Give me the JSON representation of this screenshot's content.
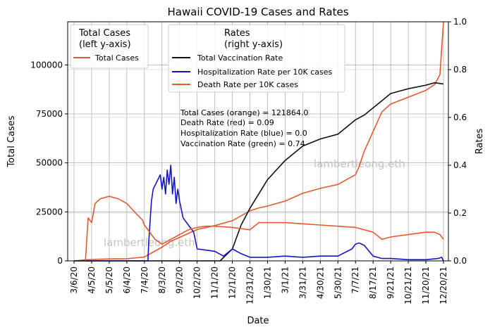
{
  "chart_data": {
    "type": "line",
    "title": "Hawaii COVID-19 Cases and Rates",
    "xlabel": "Date",
    "ylabel_left": "Total Cases",
    "ylabel_right": "Rates",
    "x_ticks": [
      "3/6/20",
      "4/5/20",
      "5/5/20",
      "6/4/20",
      "7/4/20",
      "8/3/20",
      "9/2/20",
      "10/2/20",
      "11/1/20",
      "12/1/20",
      "12/31/20",
      "1/30/21",
      "3/1/21",
      "3/31/21",
      "4/30/21",
      "5/30/21",
      "7/7/21",
      "8/17/21",
      "9/21/21",
      "10/21/21",
      "11/20/21",
      "12/20/21"
    ],
    "ylim_left": [
      0,
      122000
    ],
    "yticks_left": [
      0,
      25000,
      50000,
      75000,
      100000
    ],
    "ylim_right": [
      0,
      1.0
    ],
    "yticks_right": [
      0.0,
      0.2,
      0.4,
      0.6,
      0.8,
      1.0
    ],
    "grid": true,
    "legend_left": {
      "title_line1": "Total Cases",
      "title_line2": "(left y-axis)",
      "items": [
        {
          "label": "Total Cases",
          "color": "#e15a32"
        }
      ]
    },
    "legend_right": {
      "title_line1": "Rates",
      "title_line2": "(right y-axis)",
      "items": [
        {
          "label": "Total Vaccination Rate",
          "color": "#111111"
        },
        {
          "label": "Hospitalization Rate per 10K cases",
          "color": "#1515c8"
        },
        {
          "label": "Death Rate per 10K cases",
          "color": "#e15a32"
        }
      ]
    },
    "annotation_lines": [
      "Total Cases (orange) = 121864.0",
      "Death Rate (red) = 0.09",
      "Hospitalization Rate (blue) = 0.0",
      "Vaccination Rate (green) = 0.74"
    ],
    "watermark": "lambertleong.eth",
    "series": [
      {
        "name": "Total Cases",
        "axis": "left",
        "color": "#e15a32",
        "x_index": [
          0,
          0.6,
          0.8,
          1.0,
          1.3,
          2.0,
          3.0,
          3.6,
          4.0,
          4.5,
          5.0,
          5.5,
          6.0,
          6.5,
          7.0,
          8.0,
          9.0,
          10.0,
          10.5,
          11.0,
          12.0,
          13.0,
          14.0,
          15.0,
          16.0,
          16.2,
          16.5,
          17.0,
          17.5,
          18.0,
          19.0,
          20.0,
          20.5,
          20.8,
          21.0
        ],
        "values": [
          0,
          500,
          600,
          700,
          800,
          1000,
          1100,
          1600,
          2000,
          4500,
          7000,
          10000,
          12000,
          14000,
          16000,
          18000,
          20500,
          25500,
          27000,
          28000,
          30500,
          34500,
          37000,
          39000,
          44000,
          48000,
          56000,
          66000,
          76000,
          80000,
          83500,
          87000,
          90000,
          95000,
          121864
        ]
      },
      {
        "name": "Total Vaccination Rate",
        "axis": "right",
        "color": "#111111",
        "x_index": [
          0,
          8.3,
          9.0,
          9.5,
          10.0,
          11.0,
          12.0,
          13.0,
          14.0,
          15.0,
          15.5,
          16.0,
          16.5,
          17.0,
          17.5,
          18.0,
          19.0,
          20.0,
          20.5,
          21.0
        ],
        "values": [
          0,
          0,
          0.05,
          0.15,
          0.22,
          0.34,
          0.42,
          0.48,
          0.51,
          0.53,
          0.56,
          0.59,
          0.61,
          0.64,
          0.67,
          0.7,
          0.72,
          0.735,
          0.745,
          0.74
        ]
      },
      {
        "name": "Hospitalization Rate per 10K cases",
        "axis": "right",
        "color": "#1515c8",
        "x_index": [
          0,
          4.2,
          4.25,
          4.4,
          4.5,
          4.7,
          4.9,
          5.0,
          5.1,
          5.2,
          5.3,
          5.4,
          5.5,
          5.6,
          5.7,
          5.8,
          5.9,
          6.0,
          6.2,
          6.5,
          6.8,
          7.0,
          7.5,
          8.0,
          8.5,
          9.0,
          9.5,
          10.0,
          11.0,
          12.0,
          13.0,
          14.0,
          15.0,
          15.8,
          16.0,
          16.2,
          16.5,
          17.0,
          17.5,
          18.0,
          19.0,
          20.0,
          20.7,
          20.9,
          21.0
        ],
        "values": [
          0,
          0,
          0.08,
          0.25,
          0.3,
          0.33,
          0.36,
          0.3,
          0.35,
          0.28,
          0.38,
          0.32,
          0.4,
          0.28,
          0.35,
          0.24,
          0.3,
          0.25,
          0.18,
          0.15,
          0.12,
          0.05,
          0.045,
          0.04,
          0.02,
          0.05,
          0.03,
          0.015,
          0.015,
          0.02,
          0.015,
          0.02,
          0.02,
          0.05,
          0.07,
          0.075,
          0.065,
          0.02,
          0.01,
          0.01,
          0.005,
          0.005,
          0.01,
          0.015,
          0.0
        ]
      },
      {
        "name": "Death Rate per 10K cases",
        "axis": "right",
        "color": "#e15a32",
        "x_index": [
          0,
          0.65,
          0.8,
          1.0,
          1.2,
          1.5,
          2.0,
          2.5,
          3.0,
          3.5,
          3.9,
          4.0,
          4.3,
          4.6,
          5.0,
          5.5,
          6.0,
          6.5,
          7.0,
          7.5,
          8.0,
          9.0,
          10.0,
          10.5,
          11.0,
          12.0,
          13.0,
          14.0,
          15.0,
          16.0,
          17.0,
          17.5,
          18.0,
          19.0,
          20.0,
          20.5,
          20.8,
          21.0
        ],
        "values": [
          0,
          0,
          0.18,
          0.16,
          0.24,
          0.26,
          0.27,
          0.26,
          0.24,
          0.2,
          0.17,
          0.15,
          0.12,
          0.09,
          0.07,
          0.09,
          0.11,
          0.13,
          0.14,
          0.145,
          0.145,
          0.14,
          0.13,
          0.16,
          0.16,
          0.16,
          0.155,
          0.15,
          0.145,
          0.14,
          0.12,
          0.09,
          0.1,
          0.11,
          0.12,
          0.12,
          0.11,
          0.09
        ]
      }
    ]
  }
}
